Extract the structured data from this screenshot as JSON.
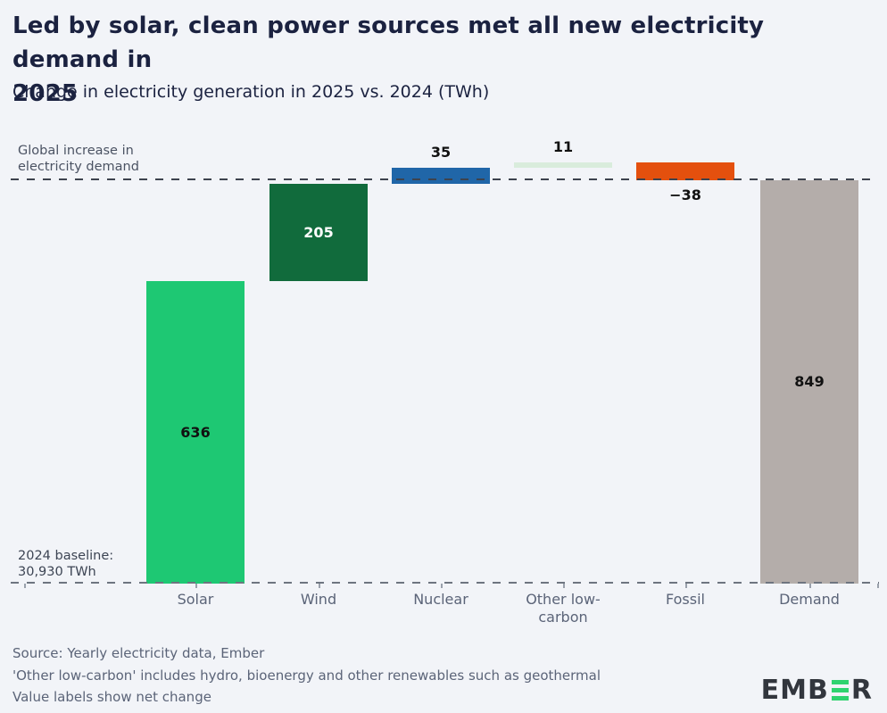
{
  "header": {
    "title_line1": "Led by solar, clean power sources met all new electricity demand in",
    "title_line2": "2025",
    "subtitle": "Change in electricity generation in 2025 vs. 2024 (TWh)"
  },
  "annotations": {
    "demand_line1": "Global increase in",
    "demand_line2": "electricity demand",
    "baseline_line1": "2024 baseline:",
    "baseline_line2": "30,930 TWh"
  },
  "footer": {
    "source": "Source: Yearly electricity data, Ember",
    "note1": "'Other low-carbon' includes hydro, bioenergy and other renewables such as geothermal",
    "note2": "Value labels show net change",
    "logo_text_left": "EMB",
    "logo_text_right": "R"
  },
  "colors": {
    "background": "#f2f4f8",
    "title_text": "#1b2240",
    "axis_text": "#5b6478",
    "annotation_text": "#4b5363",
    "dash_top": "#3d434e",
    "dash_bottom": "#6e7580",
    "logo_dark": "#32363d",
    "logo_green": "#2fd36f"
  },
  "chart_data": {
    "type": "bar",
    "subtype": "waterfall",
    "title": "Led by solar, clean power sources met all new electricity demand in 2025",
    "subtitle": "Change in electricity generation in 2025 vs. 2024 (TWh)",
    "unit": "TWh",
    "baseline_value_twh": 30930,
    "demand_increase_twh": 849,
    "categories": [
      "Solar",
      "Wind",
      "Nuclear",
      "Other low-carbon",
      "Fossil",
      "Demand"
    ],
    "values": [
      636,
      205,
      35,
      11,
      -38,
      849
    ],
    "ylim": [
      0,
      887
    ],
    "grid": false,
    "legend": "none",
    "bars": [
      {
        "category": "Solar",
        "value": 636,
        "label": "636",
        "role": "delta",
        "color": "#1ec873",
        "label_pos": "inside",
        "label_color": "#111111"
      },
      {
        "category": "Wind",
        "value": 205,
        "label": "205",
        "role": "delta",
        "color": "#116b3c",
        "label_pos": "inside",
        "label_color": "#ffffff"
      },
      {
        "category": "Nuclear",
        "value": 35,
        "label": "35",
        "role": "delta",
        "color": "#2066a8",
        "label_pos": "above",
        "label_color": "#111111"
      },
      {
        "category": "Other low-carbon",
        "value": 11,
        "label": "11",
        "role": "delta",
        "color": "#d9ecdc",
        "label_pos": "above",
        "label_color": "#111111"
      },
      {
        "category": "Fossil",
        "value": -38,
        "label": "−38",
        "role": "delta",
        "color": "#e4500e",
        "label_pos": "below",
        "label_color": "#111111"
      },
      {
        "category": "Demand",
        "value": 849,
        "label": "849",
        "role": "total",
        "color": "#b4adaa",
        "label_pos": "inside",
        "label_color": "#111111"
      }
    ]
  }
}
